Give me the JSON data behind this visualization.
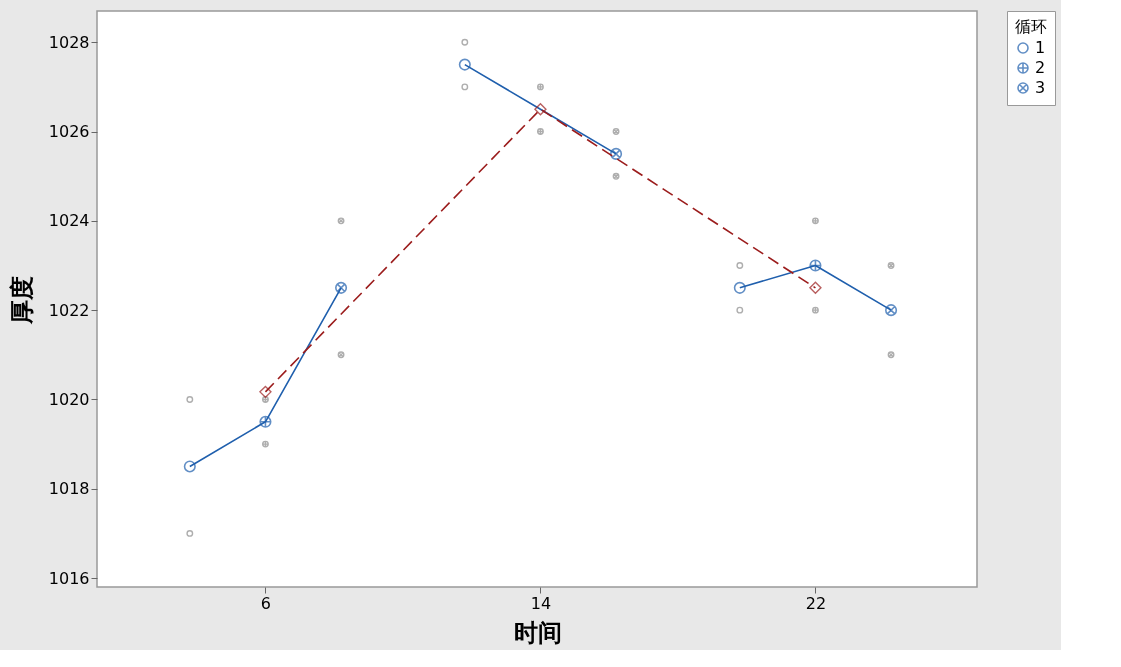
{
  "chart_data": {
    "type": "scatter",
    "xlabel": "时间",
    "ylabel": "厚度",
    "legend_title": "循环",
    "legend": "top right",
    "grid": false,
    "xlim": [
      1.1,
      26.7
    ],
    "xticks": [
      6,
      14,
      22
    ],
    "ylim": [
      1015.8,
      1028.7
    ],
    "yticks": [
      1016,
      1018,
      1020,
      1022,
      1024,
      1026,
      1028
    ],
    "series": [
      {
        "color": "#8c8c8c",
        "marker": "circle",
        "x": [
          3.8,
          3.8,
          11.8,
          11.8,
          19.8,
          19.8
        ],
        "values": [
          1020,
          1017,
          1028,
          1027,
          1023,
          1022
        ]
      },
      {
        "color": "#8c8c8c",
        "marker": "cross",
        "x": [
          6,
          6,
          14,
          14,
          22,
          22
        ],
        "values": [
          1020,
          1019,
          1027,
          1026,
          1024,
          1022
        ]
      },
      {
        "color": "#8c8c8c",
        "marker": "cross",
        "x": [
          8.2,
          8.2,
          16.2,
          16.2,
          24.2,
          24.2
        ],
        "values": [
          1024,
          1021,
          1026,
          1025,
          1023,
          1021
        ]
      },
      {
        "type": "line",
        "color": "#1f5fad",
        "marker": "none",
        "line_style": "solid",
        "x": [
          3.8,
          6,
          8.2
        ],
        "values": [
          1018.5,
          1019.5,
          1022.5
        ]
      },
      {
        "type": "line",
        "color": "#1f5fad",
        "marker": "none",
        "line_style": "solid",
        "x": [
          11.8,
          14,
          16.2
        ],
        "values": [
          1027.5,
          1026.5,
          1025.5
        ]
      },
      {
        "type": "line",
        "color": "#1f5fad",
        "marker": "none",
        "line_style": "solid",
        "x": [
          19.8,
          22,
          24.2
        ],
        "values": [
          1022.5,
          1023,
          1022
        ]
      },
      {
        "name": "1",
        "color": "#1f5fad",
        "marker": "circle",
        "x": [
          3.8,
          11.8,
          19.8
        ],
        "values": [
          1018.5,
          1027.5,
          1022.5
        ]
      },
      {
        "name": "2",
        "color": "#1f5fad",
        "marker": "cross",
        "x": [
          6,
          14,
          22
        ],
        "values": [
          1019.5,
          null,
          1023
        ]
      },
      {
        "name": "3",
        "color": "#1f5fad",
        "marker": "cross",
        "x": [
          8.2,
          16.2,
          24.2
        ],
        "values": [
          1022.5,
          1025.5,
          1022
        ]
      },
      {
        "type": "line",
        "color": "#9b1c1c",
        "marker": "diamond",
        "line_style": "dashed",
        "x": [
          6,
          14,
          22
        ],
        "values": [
          1020.17,
          1026.5,
          1022.5
        ]
      }
    ]
  }
}
